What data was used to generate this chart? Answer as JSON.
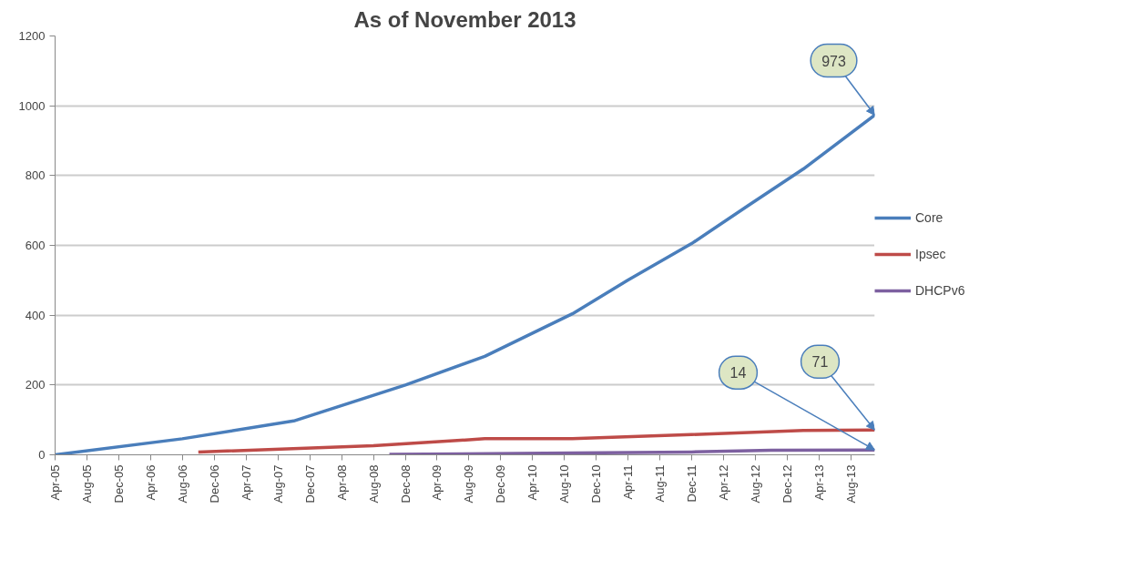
{
  "chart_data": {
    "type": "line",
    "title": "As of November 2013",
    "series": [
      {
        "name": "Core",
        "color": "#4a7ebb",
        "x": [
          "2005-04",
          "2006-08",
          "2007-10",
          "2008-12",
          "2009-10",
          "2010-09",
          "2011-04",
          "2011-12",
          "2012-07",
          "2013-02",
          "2013-11"
        ],
        "values": [
          0,
          46,
          97,
          200,
          282,
          404,
          500,
          605,
          712,
          819,
          973
        ]
      },
      {
        "name": "Ipsec",
        "color": "#be4b48",
        "x": [
          "2006-10",
          "2008-08",
          "2009-10",
          "2010-09",
          "2011-12",
          "2013-02",
          "2013-11"
        ],
        "values": [
          8,
          26,
          46,
          46,
          58,
          70,
          71
        ]
      },
      {
        "name": "DHCPv6",
        "color": "#7d60a0",
        "x": [
          "2008-10",
          "2010-09",
          "2011-12",
          "2012-10",
          "2013-11"
        ],
        "values": [
          1,
          5,
          8,
          13,
          14
        ]
      }
    ],
    "annotations": [
      {
        "text": "973",
        "x": "2013-11",
        "y": 973
      },
      {
        "text": "71",
        "x": "2013-11",
        "y": 71
      },
      {
        "text": "14",
        "x": "2013-11",
        "y": 14
      }
    ],
    "xlim": [
      "2005-04",
      "2013-11"
    ],
    "xticks": [
      {
        "value": "2005-04",
        "label": "Apr-05"
      },
      {
        "value": "2005-08",
        "label": "Aug-05"
      },
      {
        "value": "2005-12",
        "label": "Dec-05"
      },
      {
        "value": "2006-04",
        "label": "Apr-06"
      },
      {
        "value": "2006-08",
        "label": "Aug-06"
      },
      {
        "value": "2006-12",
        "label": "Dec-06"
      },
      {
        "value": "2007-04",
        "label": "Apr-07"
      },
      {
        "value": "2007-08",
        "label": "Aug-07"
      },
      {
        "value": "2007-12",
        "label": "Dec-07"
      },
      {
        "value": "2008-04",
        "label": "Apr-08"
      },
      {
        "value": "2008-08",
        "label": "Aug-08"
      },
      {
        "value": "2008-12",
        "label": "Dec-08"
      },
      {
        "value": "2009-04",
        "label": "Apr-09"
      },
      {
        "value": "2009-08",
        "label": "Aug-09"
      },
      {
        "value": "2009-12",
        "label": "Dec-09"
      },
      {
        "value": "2010-04",
        "label": "Apr-10"
      },
      {
        "value": "2010-08",
        "label": "Aug-10"
      },
      {
        "value": "2010-12",
        "label": "Dec-10"
      },
      {
        "value": "2011-04",
        "label": "Apr-11"
      },
      {
        "value": "2011-08",
        "label": "Aug-11"
      },
      {
        "value": "2011-12",
        "label": "Dec-11"
      },
      {
        "value": "2012-04",
        "label": "Apr-12"
      },
      {
        "value": "2012-08",
        "label": "Aug-12"
      },
      {
        "value": "2012-12",
        "label": "Dec-12"
      },
      {
        "value": "2013-04",
        "label": "Apr-13"
      },
      {
        "value": "2013-08",
        "label": "Aug-13"
      }
    ],
    "ylim": [
      0,
      1200
    ],
    "yticks": [
      0,
      200,
      400,
      600,
      800,
      1000,
      1200
    ],
    "grid": "y",
    "legend": "right",
    "marker": "none",
    "line_style": "solid"
  }
}
